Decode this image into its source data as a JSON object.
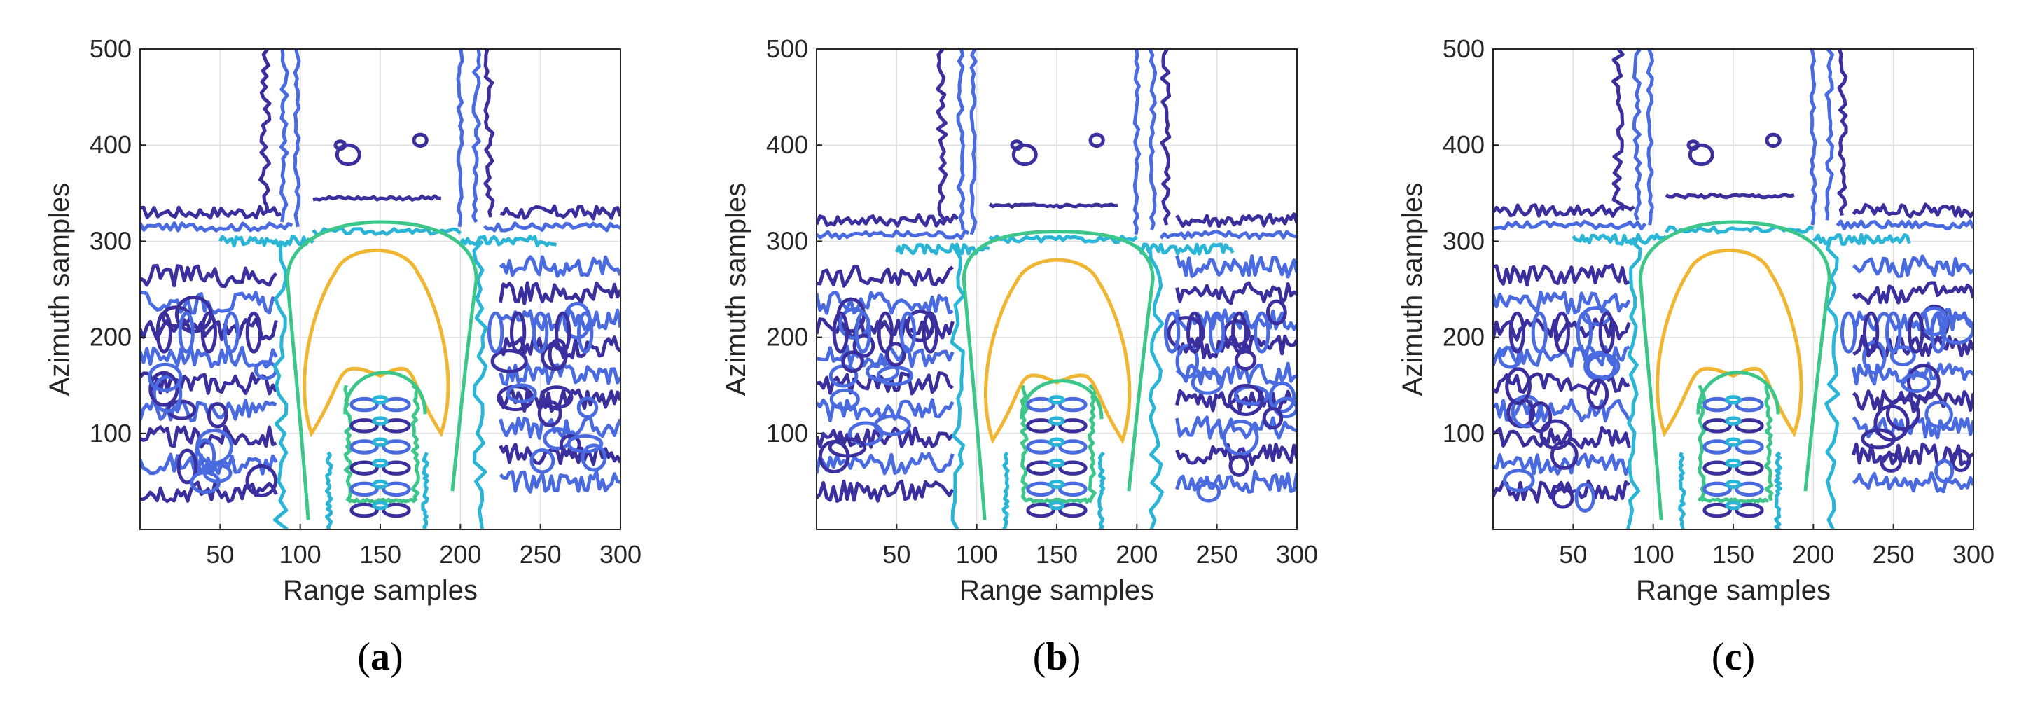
{
  "chart_data": [
    {
      "type": "contour",
      "panel_label": "a",
      "xlabel": "Range samples",
      "ylabel": "Azimuth samples",
      "xlim": [
        0,
        300
      ],
      "ylim": [
        0,
        500
      ],
      "xticks": [
        50,
        100,
        150,
        200,
        250,
        300
      ],
      "yticks": [
        100,
        200,
        300,
        400,
        500
      ],
      "grid": true,
      "levels": [
        {
          "color": "#3b2f9e",
          "name": ""
        },
        {
          "color": "#4a6ae0",
          "name": ""
        },
        {
          "color": "#2ab5d6",
          "name": ""
        },
        {
          "color": "#3cc68a",
          "name": ""
        },
        {
          "color": "#f0b531",
          "name": ""
        }
      ],
      "contours": {
        "outer_top_y": 330,
        "inner_lobe": {
          "x_range": [
            100,
            195
          ],
          "y_range": [
            100,
            298
          ]
        },
        "secondary": {
          "x_range": [
            128,
            178
          ],
          "y_range": [
            120,
            178
          ]
        }
      }
    },
    {
      "type": "contour",
      "panel_label": "b",
      "xlabel": "Range samples",
      "ylabel": "Azimuth samples",
      "xlim": [
        0,
        300
      ],
      "ylim": [
        0,
        500
      ],
      "xticks": [
        50,
        100,
        150,
        200,
        250,
        300
      ],
      "yticks": [
        100,
        200,
        300,
        400,
        500
      ],
      "grid": true,
      "levels": [
        {
          "color": "#3b2f9e",
          "name": ""
        },
        {
          "color": "#4a6ae0",
          "name": ""
        },
        {
          "color": "#2ab5d6",
          "name": ""
        },
        {
          "color": "#3cc68a",
          "name": ""
        },
        {
          "color": "#f0b531",
          "name": ""
        }
      ],
      "contours": {
        "outer_top_y": 322,
        "inner_lobe": {
          "x_range": [
            103,
            198
          ],
          "y_range": [
            93,
            288
          ]
        },
        "secondary": {
          "x_range": [
            128,
            178
          ],
          "y_range": [
            115,
            168
          ]
        }
      }
    },
    {
      "type": "contour",
      "panel_label": "c",
      "xlabel": "Range samples",
      "ylabel": "Azimuth samples",
      "xlim": [
        0,
        300
      ],
      "ylim": [
        0,
        500
      ],
      "xticks": [
        50,
        100,
        150,
        200,
        250,
        300
      ],
      "yticks": [
        100,
        200,
        300,
        400,
        500
      ],
      "grid": true,
      "levels": [
        {
          "color": "#3b2f9e",
          "name": ""
        },
        {
          "color": "#4a6ae0",
          "name": ""
        },
        {
          "color": "#2ab5d6",
          "name": ""
        },
        {
          "color": "#3cc68a",
          "name": ""
        },
        {
          "color": "#f0b531",
          "name": ""
        }
      ],
      "contours": {
        "outer_top_y": 332,
        "inner_lobe": {
          "x_range": [
            100,
            195
          ],
          "y_range": [
            100,
            298
          ]
        },
        "secondary": {
          "x_range": [
            128,
            178
          ],
          "y_range": [
            120,
            178
          ]
        }
      }
    }
  ]
}
